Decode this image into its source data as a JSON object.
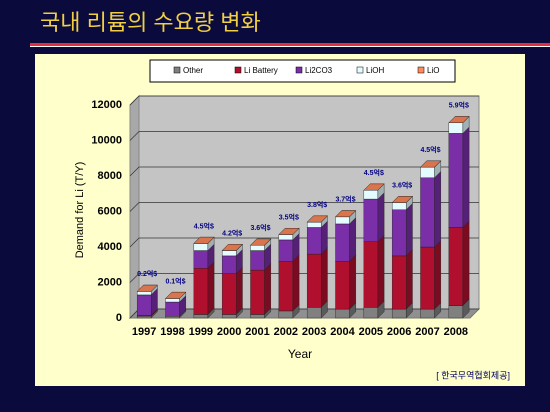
{
  "header": {
    "title": "국내 리튬의 수요량 변화"
  },
  "chart_data": {
    "type": "bar3d_stacked",
    "categories": [
      "1997",
      "1998",
      "1999",
      "2000",
      "2001",
      "2002",
      "2003",
      "2004",
      "2005",
      "2006",
      "2007",
      "2008"
    ],
    "series": [
      {
        "name": "Other",
        "color": "#808080",
        "values": [
          100,
          100,
          200,
          200,
          200,
          400,
          600,
          500,
          600,
          500,
          500,
          700
        ]
      },
      {
        "name": "Li Battery",
        "color": "#b0102e",
        "values": [
          50,
          0,
          2600,
          2300,
          2500,
          2800,
          3000,
          2700,
          3700,
          3000,
          3500,
          4400
        ]
      },
      {
        "name": "Li2CO3",
        "color": "#7a2fa8",
        "values": [
          1150,
          800,
          1000,
          1000,
          1100,
          1200,
          1500,
          2100,
          2400,
          2600,
          3900,
          5300
        ]
      },
      {
        "name": "LiOH",
        "color": "#e4fbff",
        "values": [
          200,
          200,
          400,
          300,
          300,
          300,
          300,
          400,
          500,
          400,
          600,
          600
        ]
      },
      {
        "name": "LiO",
        "color": "#ff8a5c",
        "values": [
          0,
          0,
          0,
          0,
          0,
          0,
          0,
          0,
          0,
          0,
          0,
          0
        ]
      }
    ],
    "annotations": [
      "0.2억$",
      "0.1억$",
      "4.5억$",
      "4.2억$",
      "3.6억$",
      "3.5억$",
      "3.8억$",
      "3.7억$",
      "4.5억$",
      "3.6억$",
      "4.5억$",
      "5.9억$"
    ],
    "ylim": [
      0,
      12000
    ],
    "yticks": [
      0,
      2000,
      4000,
      6000,
      8000,
      10000,
      12000
    ],
    "ylabel": "Demand for Li (T/Y)",
    "xlabel": "Year",
    "grid": true,
    "legend": "top"
  },
  "footer": {
    "source": "[ 한국무역협회제공]"
  }
}
